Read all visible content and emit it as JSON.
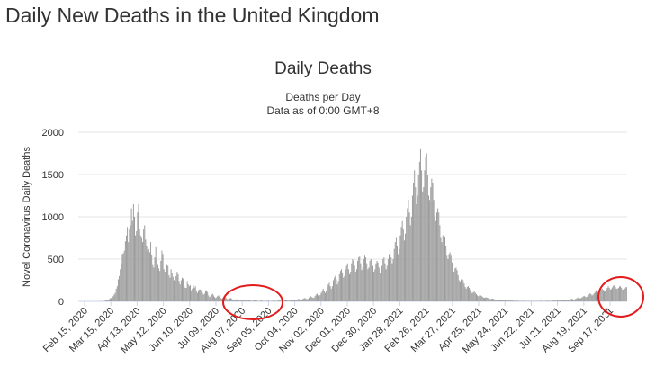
{
  "page": {
    "title": "Daily New Deaths in the United Kingdom"
  },
  "chart_data": {
    "type": "bar",
    "title": "Daily Deaths",
    "subtitle_lines": [
      "Deaths per Day",
      "Data as of 0:00 GMT+8"
    ],
    "ylabel": "Novel Coronavirus Daily Deaths",
    "xlabel": "",
    "ylim": [
      0,
      2000
    ],
    "yticks": [
      0,
      500,
      1000,
      1500,
      2000
    ],
    "grid": true,
    "legend": "none",
    "bar_color": "#999999",
    "x_start": "Feb 15, 2020",
    "x_end": "Oct 10, 2021",
    "x_tick_labels": [
      "Feb 15, 2020",
      "Mar 15, 2020",
      "Apr 13, 2020",
      "May 12, 2020",
      "Jun 10, 2020",
      "Jul 09, 2020",
      "Aug 07, 2020",
      "Sep 05, 2020",
      "Oct 04, 2020",
      "Nov 02, 2020",
      "Dec 01, 2020",
      "Dec 30, 2020",
      "Jan 28, 2021",
      "Feb 26, 2021",
      "Mar 27, 2021",
      "Apr 25, 2021",
      "May 24, 2021",
      "Jun 22, 2021",
      "Jul 21, 2021",
      "Aug 19, 2021",
      "Sep 17, 2021"
    ],
    "series": [
      {
        "values": [
          0,
          0,
          0,
          0,
          0,
          0,
          0,
          0,
          0,
          0,
          0,
          0,
          0,
          0,
          0,
          0,
          0,
          1,
          0,
          1,
          1,
          2,
          1,
          2,
          3,
          5,
          8,
          11,
          15,
          20,
          25,
          35,
          40,
          55,
          60,
          80,
          100,
          150,
          180,
          260,
          300,
          380,
          450,
          560,
          570,
          600,
          710,
          780,
          880,
          700,
          850,
          900,
          1100,
          950,
          1150,
          1000,
          780,
          830,
          1050,
          1150,
          850,
          780,
          750,
          700,
          850,
          900,
          730,
          650,
          600,
          620,
          580,
          700,
          550,
          430,
          400,
          520,
          640,
          490,
          430,
          390,
          360,
          480,
          600,
          560,
          380,
          350,
          380,
          430,
          420,
          310,
          280,
          380,
          330,
          290,
          250,
          240,
          300,
          350,
          320,
          240,
          200,
          250,
          280,
          270,
          180,
          160,
          160,
          240,
          200,
          180,
          190,
          130,
          150,
          190,
          160,
          180,
          130,
          100,
          130,
          140,
          140,
          130,
          100,
          80,
          90,
          120,
          130,
          110,
          70,
          50,
          60,
          80,
          90,
          70,
          50,
          40,
          50,
          65,
          70,
          55,
          40,
          30,
          40,
          50,
          55,
          45,
          30,
          25,
          30,
          35,
          40,
          30,
          20,
          15,
          18,
          25,
          20,
          18,
          12,
          10,
          12,
          15,
          18,
          15,
          10,
          8,
          10,
          12,
          12,
          10,
          8,
          6,
          8,
          10,
          12,
          10,
          8,
          5,
          6,
          8,
          9,
          7,
          6,
          4,
          5,
          6,
          8,
          7,
          5,
          4,
          5,
          7,
          8,
          9,
          6,
          5,
          7,
          10,
          12,
          10,
          8,
          6,
          8,
          12,
          14,
          12,
          10,
          8,
          10,
          15,
          18,
          20,
          15,
          12,
          15,
          20,
          25,
          30,
          22,
          18,
          22,
          30,
          35,
          40,
          32,
          25,
          30,
          45,
          55,
          60,
          50,
          40,
          45,
          65,
          80,
          90,
          70,
          60,
          75,
          100,
          130,
          150,
          120,
          100,
          120,
          170,
          200,
          220,
          180,
          150,
          180,
          250,
          280,
          300,
          260,
          200,
          240,
          320,
          360,
          380,
          330,
          280,
          300,
          380,
          420,
          450,
          380,
          320,
          350,
          450,
          500,
          480,
          420,
          350,
          380,
          480,
          520,
          530,
          450,
          370,
          400,
          500,
          540,
          520,
          450,
          380,
          400,
          480,
          500,
          490,
          420,
          350,
          380,
          450,
          480,
          460,
          400,
          330,
          360,
          420,
          500,
          520,
          450,
          380,
          420,
          500,
          560,
          600,
          520,
          450,
          500,
          620,
          700,
          750,
          650,
          560,
          620,
          780,
          880,
          950,
          850,
          720,
          800,
          1000,
          1100,
          1200,
          1050,
          900,
          1000,
          1250,
          1400,
          1550,
          1350,
          1150,
          1250,
          1500,
          1650,
          1800,
          1550,
          1300,
          1350,
          1550,
          1700,
          1750,
          1500,
          1250,
          1200,
          1350,
          1450,
          1400,
          1200,
          1000,
          950,
          1050,
          1100,
          1050,
          900,
          750,
          700,
          780,
          800,
          760,
          650,
          540,
          500,
          560,
          580,
          540,
          460,
          380,
          350,
          390,
          400,
          370,
          310,
          250,
          230,
          260,
          270,
          250,
          210,
          170,
          150,
          170,
          180,
          160,
          135,
          110,
          95,
          110,
          115,
          100,
          85,
          70,
          60,
          70,
          72,
          65,
          55,
          45,
          40,
          45,
          48,
          42,
          36,
          30,
          26,
          30,
          32,
          28,
          24,
          20,
          18,
          20,
          22,
          20,
          16,
          14,
          12,
          14,
          15,
          14,
          12,
          10,
          9,
          10,
          11,
          10,
          9,
          8,
          7,
          8,
          8,
          7,
          6,
          6,
          5,
          6,
          7,
          6,
          5,
          5,
          4,
          5,
          6,
          5,
          5,
          4,
          4,
          5,
          6,
          5,
          5,
          4,
          5,
          6,
          7,
          6,
          5,
          5,
          6,
          7,
          8,
          7,
          6,
          6,
          7,
          9,
          10,
          9,
          8,
          8,
          10,
          12,
          14,
          12,
          10,
          11,
          14,
          17,
          20,
          17,
          14,
          16,
          20,
          25,
          30,
          26,
          22,
          24,
          30,
          38,
          45,
          40,
          34,
          38,
          46,
          55,
          65,
          58,
          50,
          55,
          65,
          80,
          95,
          85,
          70,
          80,
          95,
          110,
          130,
          115,
          100,
          110,
          125,
          140,
          150,
          135,
          120,
          125,
          140,
          160,
          180,
          160,
          140,
          145,
          165,
          185,
          190,
          170,
          150,
          150,
          160,
          175,
          180,
          160,
          140,
          140,
          150,
          165,
          170
        ]
      }
    ],
    "annotations": [
      "red-ellipse-summer-2020-trough",
      "red-ellipse-sep-2021-rise"
    ]
  }
}
